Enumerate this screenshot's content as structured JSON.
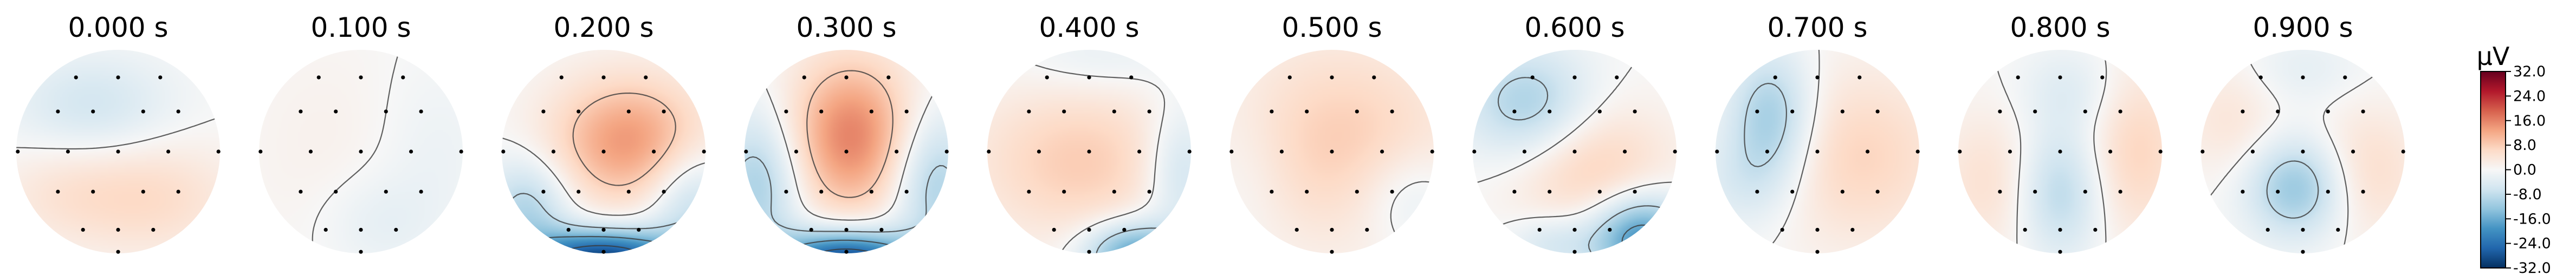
{
  "chart_data": {
    "type": "heatmap",
    "description_kind": "topomap-series",
    "panels": [
      {
        "time": "0.000 s",
        "blobs": [
          {
            "cx": -0.25,
            "cy": -0.45,
            "sx": 0.55,
            "sy": 0.35,
            "amp": -6
          },
          {
            "cx": 0.3,
            "cy": 0.45,
            "sx": 0.6,
            "sy": 0.4,
            "amp": 6
          },
          {
            "cx": -0.6,
            "cy": 0.4,
            "sx": 0.45,
            "sy": 0.35,
            "amp": 3
          }
        ]
      },
      {
        "time": "0.100 s",
        "blobs": [
          {
            "cx": -0.3,
            "cy": 0.0,
            "sx": 0.6,
            "sy": 0.8,
            "amp": 1.5
          },
          {
            "cx": 0.15,
            "cy": 0.7,
            "sx": 0.4,
            "sy": 0.35,
            "amp": -3
          },
          {
            "cx": 0.7,
            "cy": 0.0,
            "sx": 0.4,
            "sy": 0.6,
            "amp": -2
          }
        ]
      },
      {
        "time": "0.200 s",
        "blobs": [
          {
            "cx": 0.25,
            "cy": -0.1,
            "sx": 0.55,
            "sy": 0.45,
            "amp": 14
          },
          {
            "cx": 0.0,
            "cy": 1.05,
            "sx": 0.55,
            "sy": 0.2,
            "amp": -30
          },
          {
            "cx": -0.75,
            "cy": 0.55,
            "sx": 0.3,
            "sy": 0.35,
            "amp": -10
          },
          {
            "cx": 0.85,
            "cy": 0.5,
            "sx": 0.3,
            "sy": 0.4,
            "amp": -9
          }
        ]
      },
      {
        "time": "0.300 s",
        "blobs": [
          {
            "cx": 0.05,
            "cy": -0.15,
            "sx": 0.45,
            "sy": 0.55,
            "amp": 16
          },
          {
            "cx": 0.0,
            "cy": 1.1,
            "sx": 0.5,
            "sy": 0.22,
            "amp": -32
          },
          {
            "cx": -0.85,
            "cy": 0.3,
            "sx": 0.3,
            "sy": 0.5,
            "amp": -11
          },
          {
            "cx": 0.85,
            "cy": 0.3,
            "sx": 0.3,
            "sy": 0.5,
            "amp": -11
          }
        ]
      },
      {
        "time": "0.400 s",
        "blobs": [
          {
            "cx": -0.1,
            "cy": 0.1,
            "sx": 0.75,
            "sy": 0.55,
            "amp": 8
          },
          {
            "cx": 0.1,
            "cy": -0.9,
            "sx": 0.55,
            "sy": 0.25,
            "amp": -3
          },
          {
            "cx": 0.45,
            "cy": 1.0,
            "sx": 0.35,
            "sy": 0.22,
            "amp": -18
          },
          {
            "cx": 0.9,
            "cy": 0.2,
            "sx": 0.25,
            "sy": 0.45,
            "amp": -8
          }
        ]
      },
      {
        "time": "0.500 s",
        "blobs": [
          {
            "cx": 0.1,
            "cy": -0.1,
            "sx": 0.8,
            "sy": 0.7,
            "amp": 8
          },
          {
            "cx": 0.75,
            "cy": 0.45,
            "sx": 0.35,
            "sy": 0.35,
            "amp": -5
          },
          {
            "cx": -0.8,
            "cy": 0.2,
            "sx": 0.3,
            "sy": 0.5,
            "amp": -2
          }
        ]
      },
      {
        "time": "0.600 s",
        "blobs": [
          {
            "cx": -0.45,
            "cy": -0.45,
            "sx": 0.45,
            "sy": 0.4,
            "amp": -11
          },
          {
            "cx": 0.15,
            "cy": 0.15,
            "sx": 0.55,
            "sy": 0.45,
            "amp": 8
          },
          {
            "cx": 0.65,
            "cy": 0.85,
            "sx": 0.35,
            "sy": 0.3,
            "amp": -20
          },
          {
            "cx": -0.2,
            "cy": 0.9,
            "sx": 0.3,
            "sy": 0.2,
            "amp": -6
          }
        ]
      },
      {
        "time": "0.700 s",
        "blobs": [
          {
            "cx": -0.45,
            "cy": -0.35,
            "sx": 0.3,
            "sy": 0.45,
            "amp": -12
          },
          {
            "cx": 0.4,
            "cy": 0.05,
            "sx": 0.65,
            "sy": 0.6,
            "amp": 7
          },
          {
            "cx": -0.7,
            "cy": 0.3,
            "sx": 0.35,
            "sy": 0.35,
            "amp": -5
          }
        ]
      },
      {
        "time": "0.800 s",
        "blobs": [
          {
            "cx": 0.0,
            "cy": 0.4,
            "sx": 0.3,
            "sy": 0.45,
            "amp": -9
          },
          {
            "cx": 0.1,
            "cy": -0.6,
            "sx": 0.35,
            "sy": 0.3,
            "amp": -4
          },
          {
            "cx": 0.75,
            "cy": 0.0,
            "sx": 0.35,
            "sy": 0.6,
            "amp": 7
          },
          {
            "cx": -0.7,
            "cy": 0.3,
            "sx": 0.35,
            "sy": 0.5,
            "amp": 5
          }
        ]
      },
      {
        "time": "0.900 s",
        "blobs": [
          {
            "cx": -0.05,
            "cy": 0.35,
            "sx": 0.35,
            "sy": 0.35,
            "amp": -13
          },
          {
            "cx": 0.6,
            "cy": 0.2,
            "sx": 0.4,
            "sy": 0.45,
            "amp": 6
          },
          {
            "cx": -0.7,
            "cy": -0.3,
            "sx": 0.35,
            "sy": 0.4,
            "amp": 4
          },
          {
            "cx": 0.0,
            "cy": -0.8,
            "sx": 0.4,
            "sy": 0.25,
            "amp": -3
          }
        ]
      }
    ],
    "electrodes": [
      [
        -0.42,
        -0.74
      ],
      [
        0.0,
        -0.74
      ],
      [
        0.42,
        -0.74
      ],
      [
        -0.6,
        -0.4
      ],
      [
        -0.25,
        -0.4
      ],
      [
        0.25,
        -0.4
      ],
      [
        0.6,
        -0.4
      ],
      [
        -1.0,
        0.0
      ],
      [
        -0.5,
        0.0
      ],
      [
        0.0,
        0.0
      ],
      [
        0.5,
        0.0
      ],
      [
        1.0,
        0.0
      ],
      [
        -0.6,
        0.4
      ],
      [
        -0.25,
        0.4
      ],
      [
        0.25,
        0.4
      ],
      [
        0.6,
        0.4
      ],
      [
        -0.35,
        0.78
      ],
      [
        0.0,
        0.78
      ],
      [
        0.35,
        0.78
      ],
      [
        0.0,
        1.0
      ]
    ],
    "colorbar": {
      "unit": "µV",
      "min": -32.0,
      "max": 32.0,
      "ticks": [
        "32.0",
        "24.0",
        "16.0",
        "8.0",
        "0.0",
        "-8.0",
        "-16.0",
        "-24.0",
        "-32.0"
      ],
      "colormap": "RdBu_r",
      "color_stops": [
        "#053061",
        "#2166ac",
        "#4393c3",
        "#92c5de",
        "#d1e5f0",
        "#f7f7f7",
        "#fddbc7",
        "#f4a582",
        "#d6604d",
        "#b2182b",
        "#67001f"
      ]
    },
    "contour_levels": [
      -24,
      -16,
      -8,
      0,
      8,
      16,
      24
    ]
  }
}
